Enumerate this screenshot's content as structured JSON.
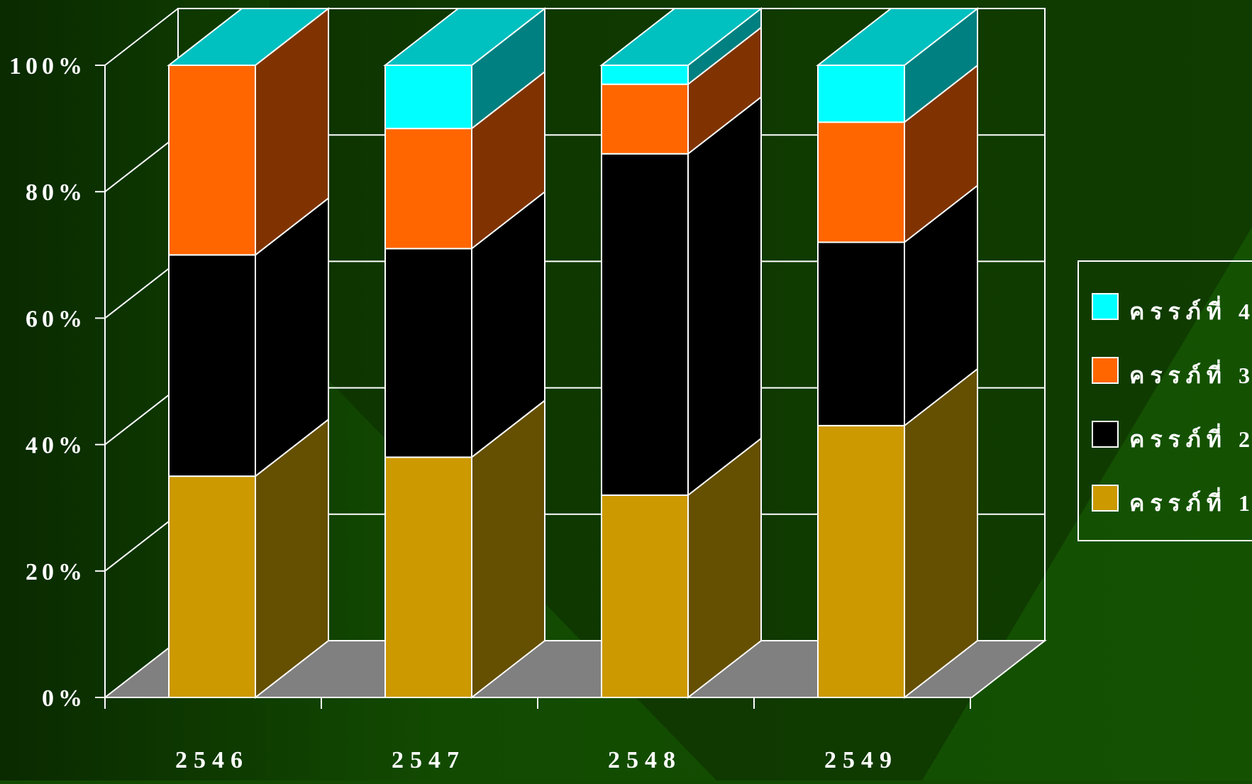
{
  "chart_data": {
    "type": "bar",
    "stacked": true,
    "three_d": true,
    "categories": [
      "2546",
      "2547",
      "2548",
      "2549"
    ],
    "y_tick_labels": [
      "0%",
      "20%",
      "40%",
      "60%",
      "80%",
      "100%"
    ],
    "ylim": [
      0,
      100
    ],
    "grid": true,
    "legend_position": "right",
    "series": [
      {
        "name": "ครรภ์ที่ 1",
        "values": [
          35,
          38,
          32,
          43
        ],
        "color": "#cc9900",
        "side_color": "#654f00"
      },
      {
        "name": "ครรภ์ที่ 2",
        "values": [
          35,
          33,
          54,
          29
        ],
        "color": "#000000",
        "side_color": "#000000"
      },
      {
        "name": "ครรภ์ที่ 3",
        "values": [
          30,
          19,
          11,
          19
        ],
        "color": "#ff6600",
        "side_color": "#803300"
      },
      {
        "name": "ครรภ์ที่ 4",
        "values": [
          0,
          10,
          3,
          9
        ],
        "color": "#00ffff",
        "side_color": "#008080"
      }
    ],
    "legend_order": [
      3,
      2,
      1,
      0
    ]
  },
  "colors": {
    "background": "#124a01",
    "floor": "#808080",
    "top_cap": "#00c0c0",
    "wall_stroke": "#ffffff",
    "shadow": "#0d2a00"
  }
}
